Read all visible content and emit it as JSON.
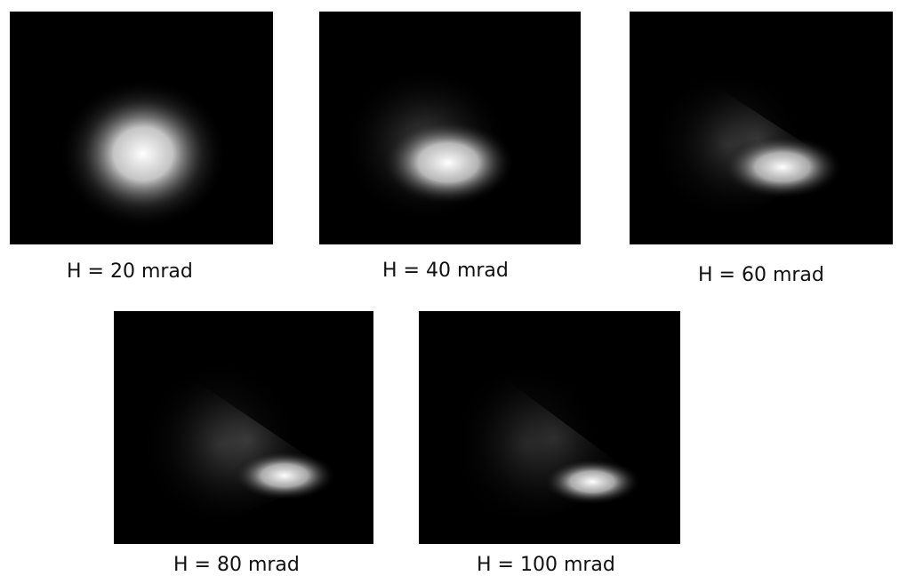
{
  "panels": [
    {
      "label": "H = 20 mrad"
    },
    {
      "label": "H = 40 mrad"
    },
    {
      "label": "H = 60 mrad"
    },
    {
      "label": "H = 80 mrad"
    },
    {
      "label": "H = 100 mrad"
    }
  ],
  "colors": {
    "background": "#000000",
    "spot": "#ffffff",
    "page": "#ffffff"
  }
}
